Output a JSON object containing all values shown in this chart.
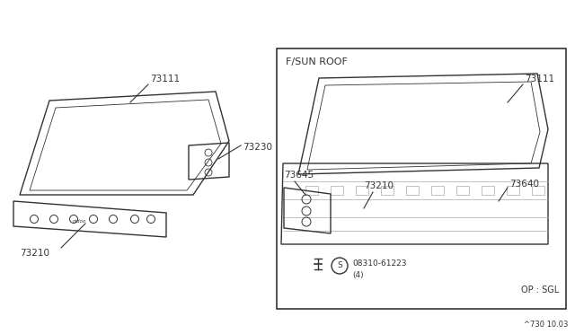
{
  "bg_color": "#ffffff",
  "line_color": "#333333",
  "light_line": "#aaaaaa",
  "footnote": "^730 10.03",
  "left_panel": {
    "part_73111_label": "73111",
    "part_73230_label": "73230",
    "part_73210_label": "73210"
  },
  "right_panel": {
    "box_label": "F/SUN ROOF",
    "part_73111_label": "73111",
    "part_73645_label": "73645",
    "part_73210_label": "73210",
    "part_73640_label": "73640",
    "bolt_label": "08310-61223",
    "bolt_qty": "(4)",
    "option_label": "OP : SGL"
  }
}
